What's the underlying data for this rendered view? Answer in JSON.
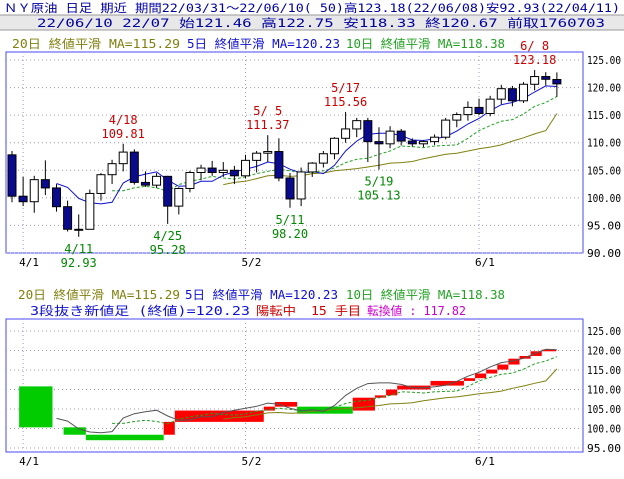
{
  "header": {
    "line1": "ＮＹ原油 日足 期近 期間22/03/31～22/06/10( 50)高123.18(22/06/08)安92.93(22/04/11)",
    "line2": "22/06/10 22/07 始121.46 高122.75 安118.33 終120.67 前取1760703"
  },
  "legend": {
    "ma20": "20日 終値平滑 MA=115.29",
    "ma5": "5日 終値平滑 MA=120.23",
    "ma10": "10日 終値平滑 MA=118.38"
  },
  "lower_info": {
    "label": "3段抜き新値足 (終値)=120.23",
    "status": "陽転中",
    "count": "15 手目",
    "turn": "転換値 : 117.82"
  },
  "colors": {
    "frame": "#4a4af0",
    "up": "#ffffff",
    "down": "#0a0a8c",
    "ma5": "#1010d0",
    "ma10": "#22a022",
    "ma20": "#808010",
    "new_up": "#ff0000",
    "new_down": "#00cc00",
    "annot_high": "#cc0000",
    "annot_low": "#008800",
    "info_purple": "#cc00cc"
  },
  "chart_data": [
    {
      "type": "candlestick",
      "title": "ＮＹ原油 日足 期近",
      "ylim": [
        90,
        125
      ],
      "yticks": [
        "125.00",
        "120.00",
        "115.00",
        "110.00",
        "105.00",
        "100.00",
        "95.00",
        "90.00"
      ],
      "xticks": [
        {
          "label": "4/1",
          "index": 1
        },
        {
          "label": "5/2",
          "index": 21
        },
        {
          "label": "6/1",
          "index": 42
        }
      ],
      "series": [
        {
          "name": "20日 終値平滑",
          "role": "ma20"
        },
        {
          "name": "5日 終値平滑",
          "role": "ma5"
        },
        {
          "name": "10日 終値平滑",
          "role": "ma10"
        }
      ],
      "candles": [
        [
          107.8,
          108.5,
          99.2,
          100.3
        ],
        [
          100.3,
          103.8,
          98.5,
          99.3
        ],
        [
          99.3,
          104.0,
          97.3,
          103.3
        ],
        [
          103.3,
          106.8,
          100.5,
          101.8
        ],
        [
          101.8,
          102.5,
          97.5,
          98.4
        ],
        [
          98.4,
          99.5,
          93.9,
          94.3
        ],
        [
          94.3,
          97.0,
          92.93,
          94.3
        ],
        [
          94.3,
          101.5,
          94.3,
          100.8
        ],
        [
          100.8,
          104.5,
          99.5,
          104.2
        ],
        [
          104.2,
          106.9,
          102.5,
          106.2
        ],
        [
          106.2,
          109.81,
          104.8,
          108.3
        ],
        [
          108.3,
          108.8,
          102.4,
          102.8
        ],
        [
          102.8,
          104.8,
          102.0,
          102.3
        ],
        [
          102.3,
          104.5,
          101.8,
          103.9
        ],
        [
          103.9,
          104.0,
          95.28,
          98.5
        ],
        [
          98.5,
          101.9,
          97.0,
          101.7
        ],
        [
          101.7,
          104.9,
          101.0,
          104.6
        ],
        [
          104.6,
          106.0,
          103.2,
          105.4
        ],
        [
          105.4,
          106.7,
          104.0,
          104.6
        ],
        [
          104.6,
          106.5,
          103.8,
          105.0
        ],
        [
          105.0,
          105.8,
          102.5,
          104.0
        ],
        [
          104.0,
          107.8,
          103.5,
          106.8
        ],
        [
          106.8,
          108.5,
          104.6,
          108.1
        ],
        [
          108.1,
          111.37,
          106.5,
          108.4
        ],
        [
          108.4,
          110.8,
          103.0,
          103.6
        ],
        [
          103.6,
          104.5,
          98.2,
          99.8
        ],
        [
          99.8,
          105.5,
          98.5,
          104.7
        ],
        [
          104.7,
          106.5,
          103.8,
          106.3
        ],
        [
          106.3,
          108.5,
          105.5,
          108.0
        ],
        [
          108.0,
          111.0,
          107.0,
          110.8
        ],
        [
          110.8,
          115.56,
          110.0,
          112.5
        ],
        [
          112.5,
          114.5,
          111.0,
          114.0
        ],
        [
          114.0,
          114.5,
          106.5,
          110.2
        ],
        [
          110.2,
          112.8,
          105.13,
          109.8
        ],
        [
          109.8,
          113.0,
          109.0,
          112.1
        ],
        [
          112.1,
          112.5,
          109.5,
          110.3
        ],
        [
          110.3,
          110.8,
          109.3,
          109.8
        ],
        [
          109.8,
          110.5,
          109.2,
          110.2
        ],
        [
          110.2,
          111.5,
          109.6,
          111.0
        ],
        [
          111.0,
          114.5,
          110.6,
          114.1
        ],
        [
          114.1,
          115.5,
          112.8,
          115.1
        ],
        [
          115.1,
          117.5,
          114.0,
          116.4
        ],
        [
          116.4,
          118.0,
          115.0,
          115.3
        ],
        [
          115.3,
          118.5,
          114.8,
          117.9
        ],
        [
          117.9,
          120.5,
          117.0,
          119.8
        ],
        [
          119.8,
          120.3,
          116.6,
          117.6
        ],
        [
          117.6,
          121.0,
          117.2,
          120.6
        ],
        [
          120.6,
          123.18,
          119.5,
          122.0
        ],
        [
          122.0,
          122.8,
          120.4,
          121.5
        ],
        [
          121.46,
          122.75,
          118.33,
          120.67
        ]
      ],
      "ma5": [
        null,
        null,
        null,
        null,
        102.6,
        101.9,
        99.9,
        99.1,
        98.9,
        99.2,
        102.7,
        103.8,
        104.3,
        104.7,
        103.2,
        102.1,
        102.2,
        103.0,
        103.0,
        104.1,
        104.7,
        105.2,
        105.7,
        106.5,
        106.2,
        105.2,
        104.5,
        104.8,
        104.4,
        105.9,
        108.5,
        110.3,
        111.5,
        111.7,
        111.7,
        111.3,
        110.5,
        110.4,
        110.7,
        111.1,
        112.1,
        113.4,
        114.4,
        115.8,
        116.9,
        117.3,
        118.0,
        119.2,
        120.3,
        120.2
      ],
      "ma10": [
        null,
        null,
        null,
        null,
        null,
        null,
        null,
        null,
        null,
        101.3,
        101.3,
        101.8,
        102.1,
        101.8,
        101.2,
        102.4,
        103.0,
        103.4,
        103.9,
        103.6,
        103.4,
        103.8,
        104.4,
        104.8,
        105.2,
        104.9,
        104.6,
        104.6,
        104.9,
        105.4,
        106.4,
        107.0,
        107.2,
        107.9,
        108.5,
        109.4,
        109.3,
        109.1,
        109.4,
        109.5,
        109.6,
        110.8,
        112.2,
        113.1,
        113.9,
        114.2,
        115.2,
        116.6,
        117.3,
        118.4
      ],
      "ma20": [
        null,
        null,
        null,
        null,
        null,
        null,
        null,
        null,
        null,
        null,
        null,
        null,
        null,
        null,
        null,
        null,
        null,
        null,
        null,
        102.4,
        102.8,
        103.0,
        103.5,
        104.0,
        104.1,
        103.9,
        104.0,
        104.4,
        104.5,
        104.9,
        105.1,
        105.3,
        105.6,
        105.9,
        106.3,
        106.4,
        106.6,
        107.1,
        107.5,
        107.9,
        108.1,
        108.5,
        108.9,
        109.2,
        109.6,
        110.3,
        110.9,
        111.6,
        112.2,
        115.29
      ],
      "annotations": [
        {
          "idx": 10,
          "date": "4/18",
          "value": "109.81",
          "kind": "high"
        },
        {
          "idx": 23,
          "date": "5/ 5",
          "value": "111.37",
          "kind": "high"
        },
        {
          "idx": 30,
          "date": "5/17",
          "value": "115.56",
          "kind": "high"
        },
        {
          "idx": 47,
          "date": "6/ 8",
          "value": "123.18",
          "kind": "high"
        },
        {
          "idx": 6,
          "date": "4/11",
          "value": "92.93",
          "kind": "low"
        },
        {
          "idx": 14,
          "date": "4/25",
          "value": "95.28",
          "kind": "low"
        },
        {
          "idx": 25,
          "date": "5/11",
          "value": "98.20",
          "kind": "low"
        },
        {
          "idx": 33,
          "date": "5/19",
          "value": "105.13",
          "kind": "low"
        }
      ]
    },
    {
      "type": "new-value-bars",
      "title": "3段抜き新値足 (終値)",
      "ylim": [
        95,
        125
      ],
      "yticks": [
        "125.00",
        "120.00",
        "115.00",
        "110.00",
        "105.00",
        "100.00",
        "95.00"
      ],
      "bricks": [
        {
          "start": 1,
          "end": 4,
          "low": 100.3,
          "high": 110.8,
          "dir": "down"
        },
        {
          "start": 5,
          "end": 7,
          "low": 98.4,
          "high": 100.3,
          "dir": "down"
        },
        {
          "start": 7,
          "end": 14,
          "low": 97.0,
          "high": 98.4,
          "dir": "down"
        },
        {
          "start": 14,
          "end": 15,
          "low": 98.4,
          "high": 101.7,
          "dir": "up"
        },
        {
          "start": 15,
          "end": 23,
          "low": 101.7,
          "high": 104.6,
          "dir": "up"
        },
        {
          "start": 23,
          "end": 24,
          "low": 104.6,
          "high": 105.6,
          "dir": "up"
        },
        {
          "start": 24,
          "end": 26,
          "low": 105.6,
          "high": 106.8,
          "dir": "up"
        },
        {
          "start": 26,
          "end": 31,
          "low": 103.8,
          "high": 105.6,
          "dir": "down"
        },
        {
          "start": 31,
          "end": 33,
          "low": 104.6,
          "high": 107.9,
          "dir": "up"
        },
        {
          "start": 33,
          "end": 34,
          "low": 107.9,
          "high": 108.5,
          "dir": "up"
        },
        {
          "start": 34,
          "end": 35,
          "low": 108.5,
          "high": 110.0,
          "dir": "up"
        },
        {
          "start": 35,
          "end": 38,
          "low": 110.0,
          "high": 111.0,
          "dir": "up"
        },
        {
          "start": 38,
          "end": 41,
          "low": 111.0,
          "high": 112.2,
          "dir": "up"
        },
        {
          "start": 41,
          "end": 42,
          "low": 112.2,
          "high": 112.9,
          "dir": "up"
        },
        {
          "start": 42,
          "end": 43,
          "low": 112.9,
          "high": 114.1,
          "dir": "up"
        },
        {
          "start": 43,
          "end": 44,
          "low": 114.1,
          "high": 115.1,
          "dir": "up"
        },
        {
          "start": 44,
          "end": 45,
          "low": 115.1,
          "high": 116.4,
          "dir": "up"
        },
        {
          "start": 45,
          "end": 46,
          "low": 116.4,
          "high": 117.9,
          "dir": "up"
        },
        {
          "start": 46,
          "end": 47,
          "low": 117.9,
          "high": 118.6,
          "dir": "up"
        },
        {
          "start": 47,
          "end": 48,
          "low": 118.6,
          "high": 119.8,
          "dir": "up"
        },
        {
          "start": 48,
          "end": 49.3,
          "low": 119.8,
          "high": 120.23,
          "dir": "up"
        }
      ],
      "ma5": [
        null,
        null,
        null,
        null,
        102.6,
        101.9,
        99.9,
        99.1,
        98.9,
        99.2,
        102.7,
        103.8,
        104.3,
        104.7,
        103.2,
        102.1,
        102.2,
        103.0,
        103.0,
        104.1,
        104.7,
        105.2,
        105.7,
        106.5,
        106.2,
        105.2,
        104.5,
        104.8,
        104.4,
        105.9,
        108.5,
        110.3,
        111.5,
        111.7,
        111.7,
        111.3,
        110.5,
        110.4,
        110.7,
        111.1,
        112.1,
        113.4,
        114.4,
        115.8,
        116.9,
        117.3,
        118.0,
        119.2,
        120.3,
        120.2
      ],
      "ma10": [
        null,
        null,
        null,
        null,
        null,
        null,
        null,
        null,
        null,
        101.3,
        101.3,
        101.8,
        102.1,
        101.8,
        101.2,
        102.4,
        103.0,
        103.4,
        103.9,
        103.6,
        103.4,
        103.8,
        104.4,
        104.8,
        105.2,
        104.9,
        104.6,
        104.6,
        104.9,
        105.4,
        106.4,
        107.0,
        107.2,
        107.9,
        108.5,
        109.4,
        109.3,
        109.1,
        109.4,
        109.5,
        109.6,
        110.8,
        112.2,
        113.1,
        113.9,
        114.2,
        115.2,
        116.6,
        117.3,
        118.4
      ],
      "ma20": [
        null,
        null,
        null,
        null,
        null,
        null,
        null,
        null,
        null,
        null,
        null,
        null,
        null,
        null,
        null,
        null,
        null,
        null,
        null,
        102.4,
        102.8,
        103.0,
        103.5,
        104.0,
        104.1,
        103.9,
        104.0,
        104.4,
        104.5,
        104.9,
        105.1,
        105.3,
        105.6,
        105.9,
        106.3,
        106.4,
        106.6,
        107.1,
        107.5,
        107.9,
        108.1,
        108.5,
        108.9,
        109.2,
        109.6,
        110.3,
        110.9,
        111.6,
        112.2,
        115.29
      ]
    }
  ]
}
